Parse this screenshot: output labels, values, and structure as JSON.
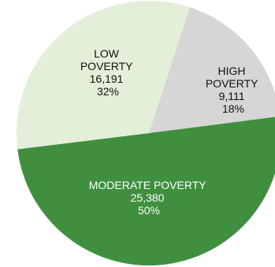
{
  "chart_data": {
    "type": "pie",
    "slices": [
      {
        "key": "high",
        "label_lines": [
          "HIGH",
          "POVERTY"
        ],
        "value": 9111,
        "value_label": "9,111",
        "percent_label": "18%",
        "color": "#d6d6d6",
        "text_color": "#111111"
      },
      {
        "key": "moderate",
        "label_lines": [
          "MODERATE POVERTY"
        ],
        "value": 25380,
        "value_label": "25,380",
        "percent_label": "50%",
        "color": "#3f8f3f",
        "text_color": "#ffffff"
      },
      {
        "key": "low",
        "label_lines": [
          "LOW",
          "POVERTY"
        ],
        "value": 16191,
        "value_label": "16,191",
        "percent_label": "32%",
        "color": "#e3efd8",
        "text_color": "#111111"
      }
    ]
  }
}
